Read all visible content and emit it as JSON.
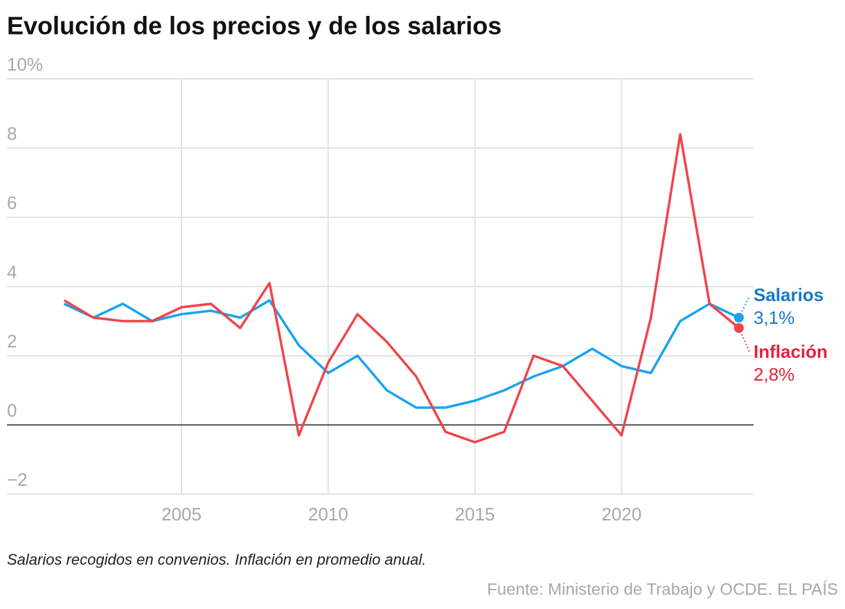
{
  "chart_data": {
    "type": "line",
    "title": "Evolución de los precios y de los salarios",
    "note": "Salarios recogidos en convenios. Inflación en promedio anual.",
    "source": "Fuente: Ministerio de Trabajo y OCDE. EL PAÍS",
    "x": [
      2001,
      2002,
      2003,
      2004,
      2005,
      2006,
      2007,
      2008,
      2009,
      2010,
      2011,
      2012,
      2013,
      2014,
      2015,
      2016,
      2017,
      2018,
      2019,
      2020,
      2021,
      2022,
      2023,
      2024
    ],
    "xlim": [
      1999.05,
      2024.5
    ],
    "xticks": [
      2005,
      2010,
      2015,
      2020
    ],
    "ylim": [
      -2,
      10
    ],
    "yticks": [
      {
        "value": -2,
        "label": "−2"
      },
      0,
      2,
      4,
      6,
      8,
      {
        "value": 10,
        "label": "10%"
      }
    ],
    "grid": true,
    "series": [
      {
        "name": "Salarios",
        "color": "#1aa3f0",
        "label_color": "#1a78c8",
        "values": [
          3.5,
          3.1,
          3.5,
          3.0,
          3.2,
          3.3,
          3.1,
          3.6,
          2.3,
          1.5,
          2.0,
          1.0,
          0.5,
          0.5,
          0.7,
          1.0,
          1.4,
          1.7,
          2.2,
          1.7,
          1.5,
          3.0,
          3.5,
          3.1
        ],
        "value_labels": [
          null,
          null,
          null,
          null,
          null,
          null,
          null,
          null,
          null,
          null,
          null,
          null,
          null,
          null,
          null,
          null,
          null,
          null,
          null,
          null,
          null,
          null,
          null,
          "3,1%"
        ]
      },
      {
        "name": "Inflación",
        "color": "#f0444a",
        "label_color": "#e0243a",
        "values": [
          3.6,
          3.1,
          3.0,
          3.0,
          3.4,
          3.5,
          2.8,
          4.1,
          -0.3,
          1.8,
          3.2,
          2.4,
          1.4,
          -0.2,
          -0.5,
          -0.2,
          2.0,
          1.7,
          0.7,
          -0.3,
          3.1,
          8.4,
          3.5,
          2.8
        ],
        "value_labels": [
          null,
          null,
          null,
          null,
          null,
          null,
          null,
          null,
          null,
          null,
          null,
          null,
          null,
          null,
          null,
          null,
          null,
          null,
          null,
          null,
          null,
          null,
          null,
          "2,8%"
        ]
      }
    ]
  }
}
